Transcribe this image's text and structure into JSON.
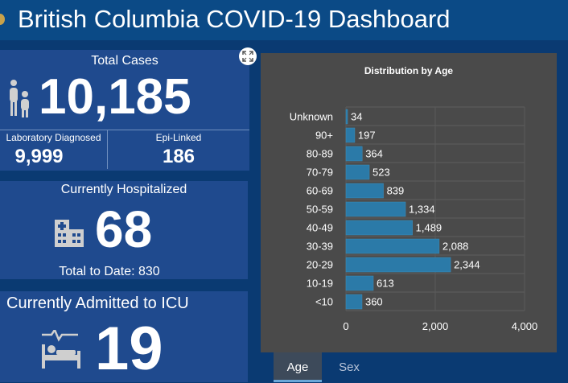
{
  "header": {
    "title": "British Columbia COVID-19 Dashboard"
  },
  "cases": {
    "label": "Total Cases",
    "value": "10,185",
    "lab_label": "Laboratory Diagnosed",
    "lab_value": "9,999",
    "epi_label": "Epi-Linked",
    "epi_value": "186"
  },
  "hospital": {
    "label": "Currently Hospitalized",
    "value": "68",
    "total_to_date": "Total to Date: 830"
  },
  "icu": {
    "label": "Currently Admitted to ICU",
    "value": "19"
  },
  "tabs": {
    "age": "Age",
    "sex": "Sex"
  },
  "colors": {
    "bar": "#2b7aa8",
    "panel": "#1f4a8e",
    "background": "#0a3a72"
  },
  "chart_data": {
    "type": "bar",
    "orientation": "horizontal",
    "title": "Distribution by Age",
    "categories": [
      "Unknown",
      "90+",
      "80-89",
      "70-79",
      "60-69",
      "50-59",
      "40-49",
      "30-39",
      "20-29",
      "10-19",
      "<10"
    ],
    "values": [
      34,
      197,
      364,
      523,
      839,
      1334,
      1489,
      2088,
      2344,
      613,
      360
    ],
    "value_labels": [
      "34",
      "197",
      "364",
      "523",
      "839",
      "1,334",
      "1,489",
      "2,088",
      "2,344",
      "613",
      "360"
    ],
    "xlim": [
      0,
      4000
    ],
    "xticks": [
      0,
      2000,
      4000
    ],
    "xtick_labels": [
      "0",
      "2,000",
      "4,000"
    ],
    "grid": true
  }
}
